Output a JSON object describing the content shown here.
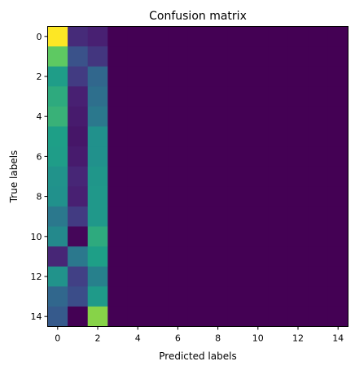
{
  "chart_data": {
    "type": "heatmap",
    "title": "Confusion matrix",
    "xlabel": "Predicted labels",
    "ylabel": "True labels",
    "x_categories": [
      0,
      1,
      2,
      3,
      4,
      5,
      6,
      7,
      8,
      9,
      10,
      11,
      12,
      13,
      14
    ],
    "y_categories": [
      0,
      1,
      2,
      3,
      4,
      5,
      6,
      7,
      8,
      9,
      10,
      11,
      12,
      13,
      14
    ],
    "x_tick_labels": [
      "0",
      "2",
      "4",
      "6",
      "8",
      "10",
      "12",
      "14"
    ],
    "y_tick_labels": [
      "0",
      "2",
      "4",
      "6",
      "8",
      "10",
      "12",
      "14"
    ],
    "colormap": "viridis",
    "value_range": [
      0,
      1
    ],
    "grid": false,
    "matrix": [
      [
        1.0,
        0.16,
        0.12,
        0,
        0,
        0,
        0,
        0,
        0,
        0,
        0,
        0,
        0,
        0,
        0
      ],
      [
        0.75,
        0.32,
        0.2,
        0,
        0,
        0,
        0,
        0,
        0,
        0,
        0,
        0,
        0,
        0,
        0
      ],
      [
        0.6,
        0.22,
        0.4,
        0,
        0,
        0,
        0,
        0,
        0,
        0,
        0,
        0,
        0,
        0,
        0
      ],
      [
        0.66,
        0.12,
        0.42,
        0,
        0,
        0,
        0,
        0,
        0,
        0,
        0,
        0,
        0,
        0,
        0
      ],
      [
        0.68,
        0.1,
        0.44,
        0,
        0,
        0,
        0,
        0,
        0,
        0,
        0,
        0,
        0,
        0,
        0
      ],
      [
        0.62,
        0.08,
        0.5,
        0,
        0,
        0,
        0,
        0,
        0,
        0,
        0,
        0,
        0,
        0,
        0
      ],
      [
        0.6,
        0.1,
        0.5,
        0,
        0,
        0,
        0,
        0,
        0,
        0,
        0,
        0,
        0,
        0,
        0
      ],
      [
        0.52,
        0.14,
        0.54,
        0,
        0,
        0,
        0,
        0,
        0,
        0,
        0,
        0,
        0,
        0,
        0
      ],
      [
        0.5,
        0.12,
        0.56,
        0,
        0,
        0,
        0,
        0,
        0,
        0,
        0,
        0,
        0,
        0,
        0
      ],
      [
        0.44,
        0.22,
        0.56,
        0,
        0,
        0,
        0,
        0,
        0,
        0,
        0,
        0,
        0,
        0,
        0
      ],
      [
        0.48,
        0.02,
        0.66,
        0,
        0,
        0,
        0,
        0,
        0,
        0,
        0,
        0,
        0,
        0,
        0
      ],
      [
        0.14,
        0.44,
        0.62,
        0,
        0,
        0,
        0,
        0,
        0,
        0,
        0,
        0,
        0,
        0,
        0
      ],
      [
        0.52,
        0.24,
        0.46,
        0,
        0,
        0,
        0,
        0,
        0,
        0,
        0,
        0,
        0,
        0,
        0
      ],
      [
        0.4,
        0.3,
        0.58,
        0,
        0,
        0,
        0,
        0,
        0,
        0,
        0,
        0,
        0,
        0,
        0
      ],
      [
        0.36,
        0.0,
        0.82,
        0,
        0,
        0,
        0,
        0,
        0,
        0,
        0,
        0,
        0,
        0,
        0
      ]
    ]
  }
}
